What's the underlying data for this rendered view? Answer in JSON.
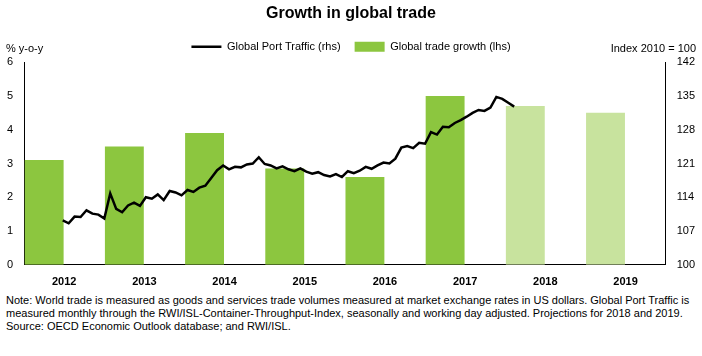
{
  "chart_data": {
    "type": "bar",
    "title": "Growth in global trade",
    "y_label": "% y-o-y",
    "y2_label": "Index 2010 = 100",
    "categories": [
      "2012",
      "2013",
      "2014",
      "2015",
      "2016",
      "2017",
      "2018",
      "2019"
    ],
    "xlim": [
      2012,
      2020
    ],
    "ylim": [
      0,
      6
    ],
    "yticks": [
      0,
      1,
      2,
      3,
      4,
      5,
      6
    ],
    "y2lim": [
      100,
      142
    ],
    "y2ticks": [
      100,
      107,
      114,
      121,
      128,
      135,
      142
    ],
    "grid": false,
    "legend": "top",
    "series": [
      {
        "name": "Global trade growth (lhs)",
        "type": "bar",
        "colors": [
          "#8cc63f",
          "#8cc63f",
          "#8cc63f",
          "#8cc63f",
          "#8cc63f",
          "#8cc63f",
          "#c8e39e",
          "#c8e39e"
        ],
        "values": [
          3.1,
          3.5,
          3.9,
          2.85,
          2.6,
          5.0,
          4.7,
          4.5
        ]
      },
      {
        "name": "Global Port Traffic (rhs)",
        "type": "line",
        "axis": "y2",
        "color": "#000000",
        "line_style": "solid",
        "x": [
          2012.042,
          2012.125,
          2012.208,
          2012.292,
          2012.375,
          2012.458,
          2012.542,
          2012.625,
          2012.708,
          2012.792,
          2012.875,
          2012.958,
          2013.042,
          2013.125,
          2013.208,
          2013.292,
          2013.375,
          2013.458,
          2013.542,
          2013.625,
          2013.708,
          2013.792,
          2013.875,
          2013.958,
          2014.042,
          2014.125,
          2014.208,
          2014.292,
          2014.375,
          2014.458,
          2014.542,
          2014.625,
          2014.708,
          2014.792,
          2014.875,
          2014.958,
          2015.042,
          2015.125,
          2015.208,
          2015.292,
          2015.375,
          2015.458,
          2015.542,
          2015.625,
          2015.708,
          2015.792,
          2015.875,
          2015.958,
          2016.042,
          2016.125,
          2016.208,
          2016.292,
          2016.375,
          2016.458,
          2016.542,
          2016.625,
          2016.708,
          2016.792,
          2016.875,
          2016.958,
          2017.042,
          2017.125,
          2017.208,
          2017.292,
          2017.375,
          2017.458,
          2017.542,
          2017.625,
          2017.708,
          2017.792,
          2017.875,
          2017.958,
          2018.042,
          2018.125,
          2018.208,
          2018.292,
          2018.375
        ],
        "values": [
          109.2,
          108.6,
          110.0,
          109.9,
          111.3,
          110.6,
          110.4,
          109.6,
          114.8,
          111.6,
          110.9,
          112.3,
          112.9,
          112.2,
          114.0,
          113.7,
          114.6,
          113.4,
          115.3,
          115.0,
          114.4,
          115.5,
          115.1,
          116.0,
          116.4,
          118.0,
          119.6,
          120.6,
          119.8,
          120.3,
          120.2,
          120.8,
          121.0,
          122.3,
          120.9,
          120.6,
          120.0,
          120.4,
          119.8,
          119.4,
          120.0,
          119.3,
          118.9,
          119.2,
          118.6,
          118.3,
          118.8,
          118.2,
          119.4,
          119.0,
          119.5,
          120.3,
          119.9,
          120.6,
          121.2,
          121.0,
          122.0,
          124.3,
          124.6,
          124.2,
          125.3,
          125.1,
          127.5,
          127.0,
          128.6,
          128.5,
          129.4,
          130.0,
          130.7,
          131.5,
          132.1,
          131.9,
          132.6,
          134.8,
          134.4,
          133.6,
          132.8
        ]
      }
    ],
    "note": "Note: World trade is measured as goods and services trade volumes measured at market exchange rates in US dollars. Global Port Traffic is measured monthly through the RWI/ISL-Container-Throughput-Index, seasonally and working day adjusted. Projections for 2018 and 2019.",
    "source": "Source: OECD Economic Outlook database; and RWI/ISL."
  }
}
